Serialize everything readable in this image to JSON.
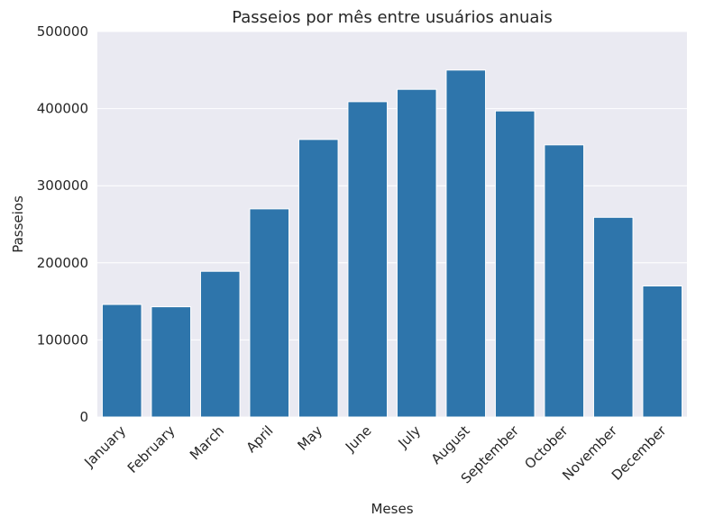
{
  "chart_data": {
    "type": "bar",
    "title": "Passeios por mês entre usuários anuais",
    "xlabel": "Meses",
    "ylabel": "Passeios",
    "categories": [
      "January",
      "February",
      "March",
      "April",
      "May",
      "June",
      "July",
      "August",
      "September",
      "October",
      "November",
      "December"
    ],
    "values": [
      146000,
      143000,
      189000,
      270000,
      360000,
      409000,
      425000,
      450000,
      397000,
      353000,
      259000,
      170000
    ],
    "ylim": [
      0,
      500000
    ],
    "yticks": [
      "0",
      "100000",
      "200000",
      "300000",
      "400000",
      "500000"
    ],
    "grid": true,
    "colors": {
      "bar": "#2e75ab",
      "plot_background": "#eaeaf2",
      "grid": "#ffffff"
    }
  }
}
